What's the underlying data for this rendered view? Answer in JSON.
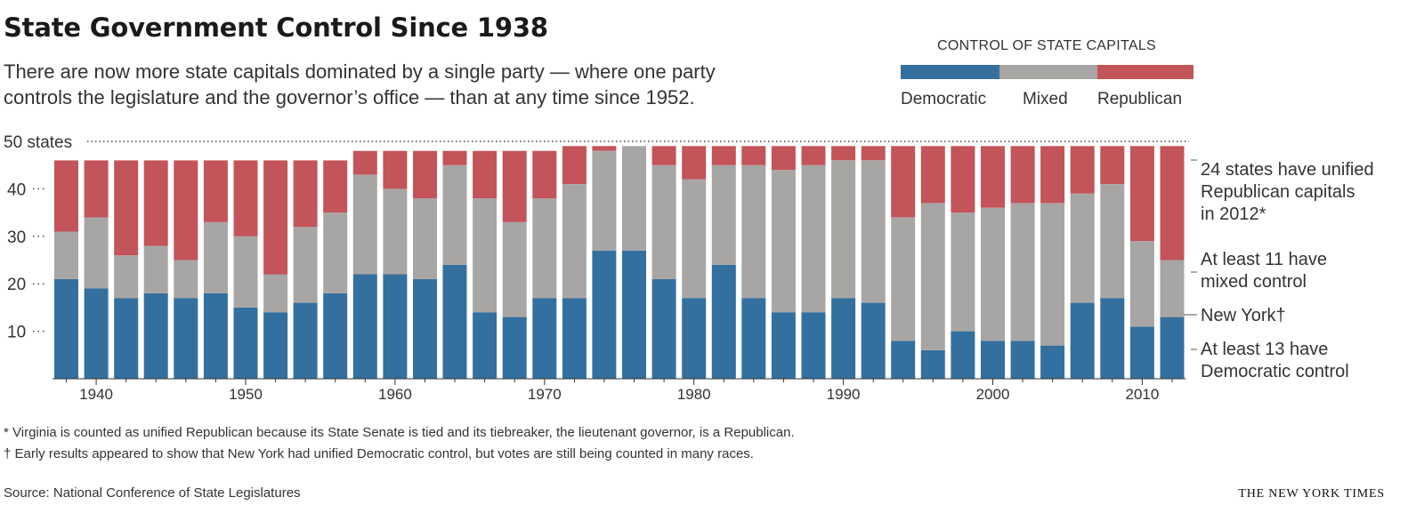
{
  "header": {
    "title": "State Government Control Since 1938",
    "subtitle_line1": "There are now more state capitals dominated by a single party — where one party",
    "subtitle_line2": "controls the legislature and the governor’s office — than at any time since 1952."
  },
  "legend": {
    "title": "CONTROL OF STATE CAPITALS",
    "democratic": "Democratic",
    "mixed": "Mixed",
    "republican": "Republican"
  },
  "colors": {
    "democratic": "#33709f",
    "mixed": "#a8a6a4",
    "republican": "#c2545a"
  },
  "annotations": {
    "republican_line1": "24 states have unified",
    "republican_line2": "Republican capitals",
    "republican_line3": "in 2012*",
    "mixed_line1": "At least 11 have",
    "mixed_line2": "mixed control",
    "new_york": "New York†",
    "democratic_line1": "At least 13 have",
    "democratic_line2": "Democratic control"
  },
  "footnotes": {
    "virginia": "* Virginia is counted as unified Republican because its State Senate is tied and its tiebreaker, the lieutenant governor, is a Republican.",
    "new_york": "† Early results appeared to show that New York had unified Democratic control, but votes are still being counted in many races."
  },
  "source": "Source: National Conference of State Legislatures",
  "credit": "THE NEW YORK TIMES",
  "chart_data": {
    "type": "bar",
    "stacked": true,
    "x": [
      1938,
      1940,
      1942,
      1944,
      1946,
      1948,
      1950,
      1952,
      1954,
      1956,
      1958,
      1960,
      1962,
      1964,
      1966,
      1968,
      1970,
      1972,
      1974,
      1976,
      1978,
      1980,
      1982,
      1984,
      1986,
      1988,
      1990,
      1992,
      1994,
      1996,
      1998,
      2000,
      2002,
      2004,
      2006,
      2008,
      2010,
      2012
    ],
    "series": [
      {
        "name": "Democratic",
        "values": [
          21,
          19,
          17,
          18,
          17,
          18,
          15,
          14,
          16,
          18,
          22,
          22,
          21,
          24,
          14,
          13,
          17,
          17,
          27,
          27,
          21,
          17,
          24,
          17,
          14,
          14,
          17,
          16,
          8,
          6,
          10,
          8,
          8,
          7,
          16,
          17,
          11,
          13
        ]
      },
      {
        "name": "Mixed",
        "values": [
          10,
          15,
          9,
          10,
          8,
          15,
          15,
          8,
          16,
          17,
          21,
          18,
          17,
          21,
          24,
          20,
          21,
          24,
          21,
          22,
          24,
          25,
          21,
          28,
          30,
          31,
          29,
          30,
          26,
          31,
          25,
          28,
          29,
          30,
          23,
          24,
          18,
          12
        ]
      },
      {
        "name": "Republican",
        "values": [
          15,
          12,
          20,
          18,
          21,
          13,
          16,
          24,
          14,
          11,
          5,
          8,
          10,
          3,
          10,
          15,
          10,
          8,
          1,
          0,
          4,
          7,
          4,
          4,
          5,
          4,
          3,
          3,
          15,
          12,
          14,
          13,
          12,
          12,
          10,
          8,
          20,
          24
        ]
      }
    ],
    "xticks": [
      1940,
      1950,
      1960,
      1970,
      1980,
      1990,
      2000,
      2010
    ],
    "yticks": [
      10,
      20,
      30,
      40
    ],
    "ylim": [
      0,
      50
    ],
    "reference_line": {
      "value": 50,
      "label": "50 states"
    },
    "grid": false,
    "legend_position": "top-right"
  }
}
